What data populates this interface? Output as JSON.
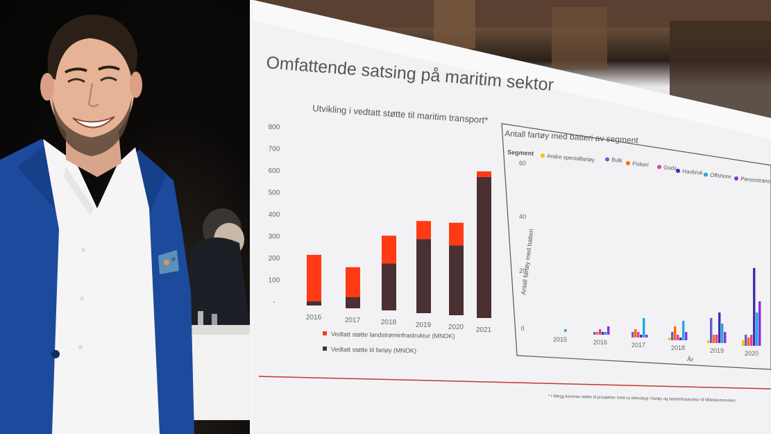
{
  "slide": {
    "title": "Omfattende satsing på maritim sektor",
    "footnote": "* I tillegg kommer støtte til prosjekter med ny teknologi i fartøy og lasteinfrastruktur til Mileskommunen"
  },
  "chart_data": [
    {
      "type": "bar",
      "stacked": true,
      "title": "Utvikling i vedtatt støtte til maritim transport*",
      "categories": [
        "2016",
        "2017",
        "2018",
        "2019",
        "2020",
        "2021"
      ],
      "yticks": [
        "800",
        "700",
        "600",
        "500",
        "400",
        "300",
        "200",
        "100",
        "-"
      ],
      "ylim": [
        0,
        800
      ],
      "series": [
        {
          "name": "Vedtatt støtte til fartøy (MNOK)",
          "color": "#4a2f33",
          "values": [
            20,
            50,
            210,
            330,
            310,
            620
          ]
        },
        {
          "name": "Vedtatt støtte landstrøminfrastruktur (MNOK)",
          "color": "#ff3a14",
          "values": [
            210,
            135,
            125,
            80,
            100,
            25
          ]
        }
      ],
      "legend": "bottom"
    },
    {
      "type": "bar",
      "title": "Antall fartøy med batteri av segment",
      "legend_title": "Segment",
      "ylabel": "Antall fartøy med batteri",
      "xlabel": "År",
      "yticks": [
        "60",
        "40",
        "20",
        "0"
      ],
      "ylim": [
        0,
        60
      ],
      "categories": [
        "2015",
        "2016",
        "2017",
        "2018",
        "2019",
        "2020"
      ],
      "series": [
        {
          "name": "Andre spesialfartøy",
          "color": "#f2c200",
          "values": [
            0,
            0,
            0,
            1,
            1,
            2
          ]
        },
        {
          "name": "Bulk",
          "color": "#6a5acd",
          "values": [
            0,
            1,
            2,
            3,
            9,
            4
          ]
        },
        {
          "name": "Fiskeri",
          "color": "#ff6a00",
          "values": [
            0,
            1,
            3,
            5,
            3,
            3
          ]
        },
        {
          "name": "Gods",
          "color": "#e040a0",
          "values": [
            0,
            2,
            2,
            2,
            3,
            4
          ]
        },
        {
          "name": "Havbruk",
          "color": "#3b2fb0",
          "values": [
            0,
            1,
            1,
            1,
            11,
            28
          ]
        },
        {
          "name": "Offshore",
          "color": "#22a7e0",
          "values": [
            1,
            1,
            7,
            7,
            7,
            12
          ]
        },
        {
          "name": "Persontransport",
          "color": "#8a2be2",
          "values": [
            0,
            3,
            1,
            3,
            4,
            16
          ]
        }
      ]
    }
  ]
}
